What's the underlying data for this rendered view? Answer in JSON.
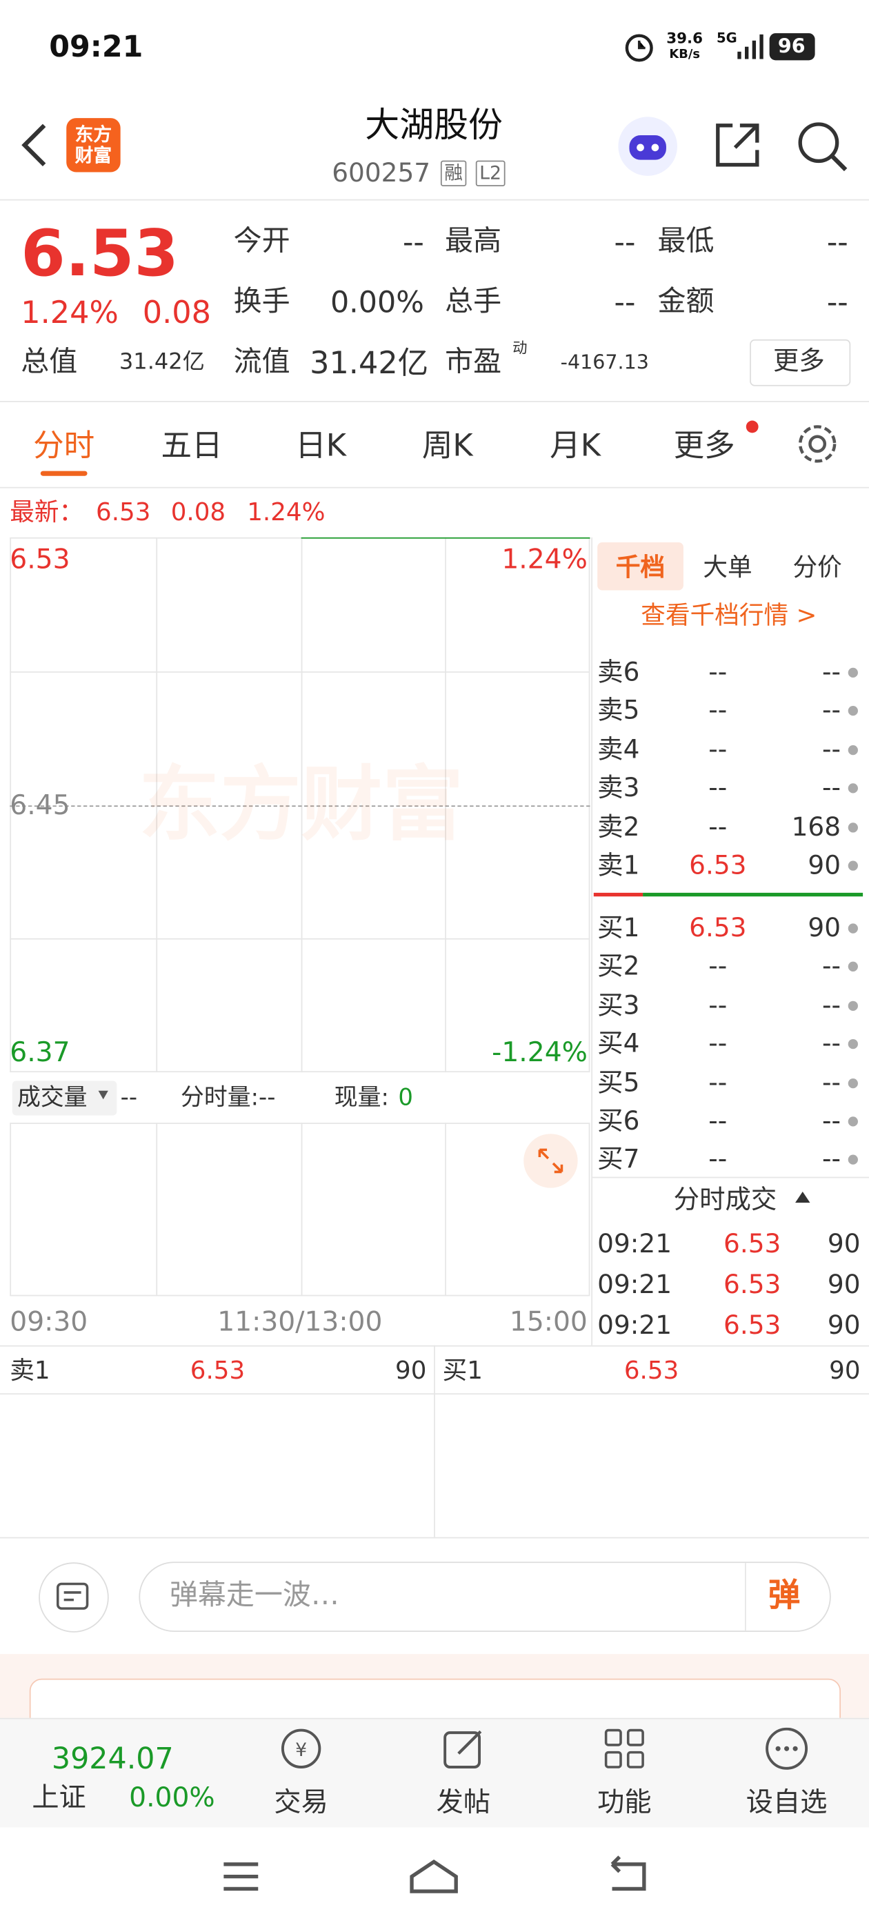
{
  "status_bar": {
    "time": "09:21",
    "net_speed": "39.6",
    "net_unit": "KB/s",
    "network": "5G",
    "battery": "96"
  },
  "header": {
    "logo": "东方财富",
    "title": "大湖股份",
    "code": "600257",
    "tag_margin": "融",
    "tag_level": "L2"
  },
  "quote": {
    "price": "6.53",
    "change_pct": "1.24%",
    "change": "0.08",
    "fields": [
      {
        "label": "今开",
        "value": "--"
      },
      {
        "label": "最高",
        "value": "--"
      },
      {
        "label": "最低",
        "value": "--"
      },
      {
        "label": "换手",
        "value": "0.00%"
      },
      {
        "label": "总手",
        "value": "--"
      },
      {
        "label": "金额",
        "value": "--"
      },
      {
        "label": "总值",
        "value": "31.42亿"
      },
      {
        "label": "流值",
        "value": "31.42亿"
      },
      {
        "label": "市盈",
        "sup": "动",
        "value": "-4167.13"
      }
    ],
    "more": "更多"
  },
  "tabs": [
    "分时",
    "五日",
    "日K",
    "周K",
    "月K",
    "更多"
  ],
  "latest": {
    "label": "最新：",
    "price": "6.53",
    "change": "0.08",
    "pct": "1.24%"
  },
  "chart": {
    "watermark": "东方财富",
    "price_high": "6.53",
    "price_mid": "6.45",
    "price_low": "6.37",
    "pct_high": "1.24%",
    "pct_low": "-1.24%",
    "volume_label": "成交量",
    "volume_value": "--",
    "minute_volume": "分时量:--",
    "current_volume_label": "现量:",
    "current_volume": "0",
    "times": [
      "09:30",
      "11:30/13:00",
      "15:00"
    ]
  },
  "order_book": {
    "tabs": [
      "千档",
      "大单",
      "分价"
    ],
    "link": "查看千档行情 >",
    "asks": [
      {
        "label": "卖6",
        "price": "--",
        "volume": "--"
      },
      {
        "label": "卖5",
        "price": "--",
        "volume": "--"
      },
      {
        "label": "卖4",
        "price": "--",
        "volume": "--"
      },
      {
        "label": "卖3",
        "price": "--",
        "volume": "--"
      },
      {
        "label": "卖2",
        "price": "--",
        "volume": "168"
      },
      {
        "label": "卖1",
        "price": "6.53",
        "volume": "90"
      }
    ],
    "bids": [
      {
        "label": "买1",
        "price": "6.53",
        "volume": "90"
      },
      {
        "label": "买2",
        "price": "--",
        "volume": "--"
      },
      {
        "label": "买3",
        "price": "--",
        "volume": "--"
      },
      {
        "label": "买4",
        "price": "--",
        "volume": "--"
      },
      {
        "label": "买5",
        "price": "--",
        "volume": "--"
      },
      {
        "label": "买6",
        "price": "--",
        "volume": "--"
      },
      {
        "label": "买7",
        "price": "--",
        "volume": "--"
      }
    ],
    "trades_title": "分时成交",
    "trades": [
      {
        "time": "09:21",
        "price": "6.53",
        "volume": "90"
      },
      {
        "time": "09:21",
        "price": "6.53",
        "volume": "90"
      },
      {
        "time": "09:21",
        "price": "6.53",
        "volume": "90"
      }
    ]
  },
  "best": {
    "ask_label": "卖1",
    "ask_price": "6.53",
    "ask_volume": "90",
    "bid_label": "买1",
    "bid_price": "6.53",
    "bid_volume": "90"
  },
  "comment": {
    "placeholder": "弹幕走一波…",
    "button": "弹"
  },
  "bottom_nav": {
    "index_value": "3924.07",
    "index_name": "上证",
    "index_change": "0.00%",
    "items": [
      "交易",
      "发帖",
      "功能",
      "设自选"
    ]
  }
}
